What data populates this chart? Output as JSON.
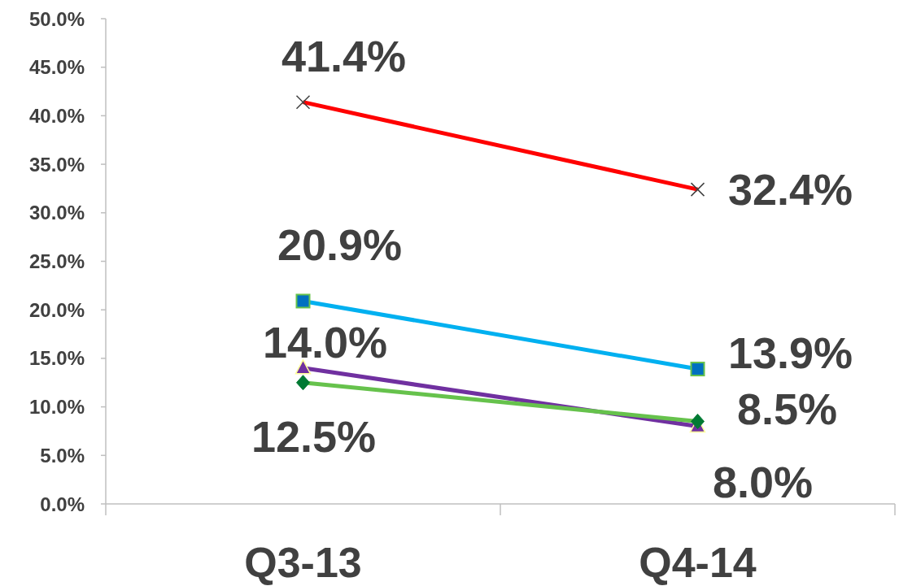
{
  "chart_data": {
    "type": "line",
    "categories": [
      "Q3-13",
      "Q4-14"
    ],
    "ylim": [
      0,
      50
    ],
    "yticks": [
      {
        "value": 0,
        "label": "0.0%"
      },
      {
        "value": 5,
        "label": "5.0%"
      },
      {
        "value": 10,
        "label": "10.0%"
      },
      {
        "value": 15,
        "label": "15.0%"
      },
      {
        "value": 20,
        "label": "20.0%"
      },
      {
        "value": 25,
        "label": "25.0%"
      },
      {
        "value": 30,
        "label": "30.0%"
      },
      {
        "value": 35,
        "label": "35.0%"
      },
      {
        "value": 40,
        "label": "40.0%"
      },
      {
        "value": 45,
        "label": "45.0%"
      },
      {
        "value": 50,
        "label": "50.0%"
      }
    ],
    "grid": false,
    "series": [
      {
        "color": "#ff0000",
        "marker": "cross",
        "values": [
          41.4,
          32.4
        ],
        "value_labels": [
          "41.4%",
          "32.4%"
        ]
      },
      {
        "color": "#00b0f0",
        "marker": "square",
        "values": [
          20.9,
          13.9
        ],
        "value_labels": [
          "20.9%",
          "13.9%"
        ]
      },
      {
        "color": "#7030a0",
        "marker": "triangle",
        "values": [
          14.0,
          8.0
        ],
        "value_labels": [
          "14.0%",
          "8.0%"
        ]
      },
      {
        "color": "#66c24c",
        "marker": "diamond",
        "values": [
          12.5,
          8.5
        ],
        "value_labels": [
          "12.5%",
          "8.5%"
        ]
      }
    ]
  }
}
